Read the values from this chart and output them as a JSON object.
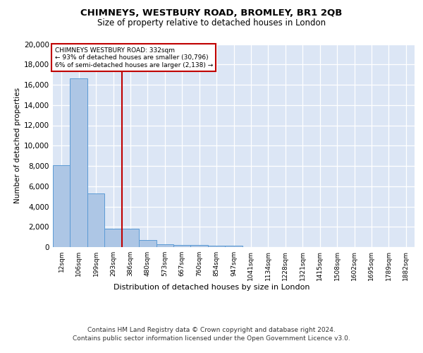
{
  "title_line1": "CHIMNEYS, WESTBURY ROAD, BROMLEY, BR1 2QB",
  "title_line2": "Size of property relative to detached houses in London",
  "xlabel": "Distribution of detached houses by size in London",
  "ylabel": "Number of detached properties",
  "footer_line1": "Contains HM Land Registry data © Crown copyright and database right 2024.",
  "footer_line2": "Contains public sector information licensed under the Open Government Licence v3.0.",
  "annotation_line1": "CHIMNEYS WESTBURY ROAD: 332sqm",
  "annotation_line2": "← 93% of detached houses are smaller (30,796)",
  "annotation_line3": "6% of semi-detached houses are larger (2,138) →",
  "bar_color": "#adc6e5",
  "bar_edge_color": "#5b9bd5",
  "vline_color": "#c00000",
  "vline_x_idx": 3.5,
  "background_color": "#dce6f5",
  "ylim": [
    0,
    20000
  ],
  "yticks": [
    0,
    2000,
    4000,
    6000,
    8000,
    10000,
    12000,
    14000,
    16000,
    18000,
    20000
  ],
  "categories": [
    "12sqm",
    "106sqm",
    "199sqm",
    "293sqm",
    "386sqm",
    "480sqm",
    "573sqm",
    "667sqm",
    "760sqm",
    "854sqm",
    "947sqm",
    "1041sqm",
    "1134sqm",
    "1228sqm",
    "1321sqm",
    "1415sqm",
    "1508sqm",
    "1602sqm",
    "1695sqm",
    "1789sqm",
    "1882sqm"
  ],
  "values": [
    8100,
    16600,
    5300,
    1800,
    1800,
    700,
    300,
    230,
    200,
    170,
    160,
    0,
    0,
    0,
    0,
    0,
    0,
    0,
    0,
    0,
    0
  ]
}
